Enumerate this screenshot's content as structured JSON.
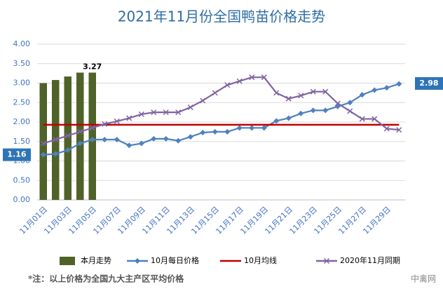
{
  "chart_data": {
    "type": "combo",
    "title": "2021年11月份全国鸭苗价格走势",
    "categories": [
      "11月01日",
      null,
      "11月03日",
      null,
      "11月05日",
      null,
      "11月07日",
      null,
      "11月09日",
      null,
      "11月11日",
      null,
      "11月13日",
      null,
      "11月15日",
      null,
      "11月17日",
      null,
      "11月19日",
      null,
      "11月21日",
      null,
      "11月23日",
      null,
      "11月25日",
      null,
      "11月27日",
      null,
      "11月29日",
      null
    ],
    "ylim": [
      0,
      4
    ],
    "yticks": [
      {
        "value": 0,
        "label": "0.00"
      },
      {
        "value": 0.5,
        "label": "0.50"
      },
      {
        "value": 1,
        "label": "1.00"
      },
      {
        "value": 1.5,
        "label": "1.50"
      },
      {
        "value": 2,
        "label": "2.00"
      },
      {
        "value": 2.5,
        "label": "2.50"
      },
      {
        "value": 3,
        "label": "3.00"
      },
      {
        "value": 3.5,
        "label": "3.50"
      },
      {
        "value": 4,
        "label": "4.00"
      }
    ],
    "grid": true,
    "series": [
      {
        "name": "本月走势",
        "kind": "bar",
        "color": "#4f6228",
        "values": [
          3.0,
          3.08,
          3.17,
          3.27,
          3.27,
          null,
          null,
          null,
          null,
          null,
          null,
          null,
          null,
          null,
          null,
          null,
          null,
          null,
          null,
          null,
          null,
          null,
          null,
          null,
          null,
          null,
          null,
          null,
          null,
          null
        ],
        "value_labels": [
          null,
          null,
          null,
          null,
          "3.27",
          null,
          null,
          null,
          null,
          null,
          null,
          null,
          null,
          null,
          null,
          null,
          null,
          null,
          null,
          null,
          null,
          null,
          null,
          null,
          null,
          null,
          null,
          null,
          null,
          null
        ]
      },
      {
        "name": "10月每日价格",
        "kind": "line",
        "marker": "diamond",
        "color": "#4f81bd",
        "values": [
          1.16,
          1.18,
          1.28,
          1.45,
          1.55,
          1.55,
          1.55,
          1.4,
          1.45,
          1.57,
          1.57,
          1.52,
          1.62,
          1.73,
          1.75,
          1.75,
          1.85,
          1.85,
          1.85,
          2.03,
          2.1,
          2.22,
          2.3,
          2.3,
          2.4,
          2.5,
          2.7,
          2.82,
          2.88,
          2.98
        ],
        "value_labels": [
          "1.16",
          null,
          null,
          null,
          null,
          null,
          null,
          null,
          null,
          null,
          null,
          null,
          null,
          null,
          null,
          null,
          null,
          null,
          null,
          null,
          null,
          null,
          null,
          null,
          null,
          null,
          null,
          null,
          null,
          "2.98"
        ]
      },
      {
        "name": "10月均线",
        "kind": "line",
        "marker": "none",
        "color": "#c00000",
        "values": [
          1.93,
          1.93,
          1.93,
          1.93,
          1.93,
          1.93,
          1.93,
          1.93,
          1.93,
          1.93,
          1.93,
          1.93,
          1.93,
          1.93,
          1.93,
          1.93,
          1.93,
          1.93,
          1.93,
          1.93,
          1.93,
          1.93,
          1.93,
          1.93,
          1.93,
          1.93,
          1.93,
          1.93,
          1.93,
          1.93
        ]
      },
      {
        "name": "2020年11月同期",
        "kind": "line",
        "marker": "x",
        "color": "#8064a2",
        "values": [
          1.45,
          1.55,
          1.65,
          1.75,
          1.85,
          1.95,
          2.02,
          2.1,
          2.2,
          2.25,
          2.25,
          2.25,
          2.38,
          2.55,
          2.75,
          2.95,
          3.05,
          3.15,
          3.15,
          2.75,
          2.6,
          2.68,
          2.78,
          2.78,
          2.48,
          2.28,
          2.08,
          2.08,
          1.83,
          1.8
        ]
      }
    ],
    "note": "*注：以上价格为全国九大主产区平均价格",
    "source": "中禽网"
  }
}
